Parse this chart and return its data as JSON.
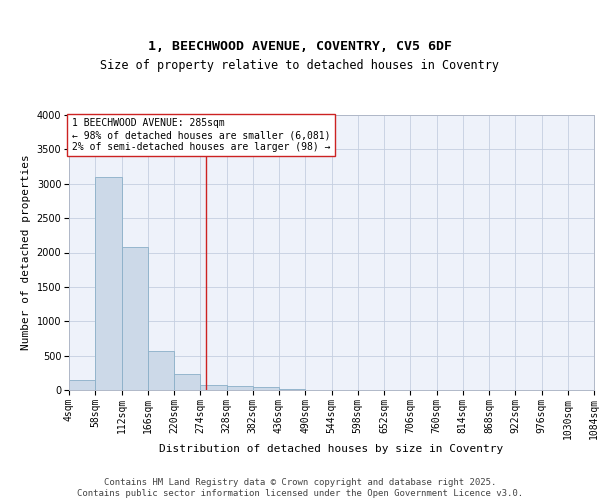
{
  "title_line1": "1, BEECHWOOD AVENUE, COVENTRY, CV5 6DF",
  "title_line2": "Size of property relative to detached houses in Coventry",
  "xlabel": "Distribution of detached houses by size in Coventry",
  "ylabel": "Number of detached properties",
  "bar_color": "#ccd9e8",
  "bar_edge_color": "#8aafc8",
  "background_color": "#eef2fa",
  "grid_color": "#c5cfe0",
  "vline_value": 285,
  "vline_color": "#cc2222",
  "annotation_text": "1 BEECHWOOD AVENUE: 285sqm\n← 98% of detached houses are smaller (6,081)\n2% of semi-detached houses are larger (98) →",
  "annotation_box_color": "#ffffff",
  "annotation_edge_color": "#cc2222",
  "bin_edges": [
    4,
    58,
    112,
    166,
    220,
    274,
    328,
    382,
    436,
    490,
    544,
    598,
    652,
    706,
    760,
    814,
    868,
    922,
    976,
    1030,
    1084
  ],
  "bin_labels": [
    "4sqm",
    "58sqm",
    "112sqm",
    "166sqm",
    "220sqm",
    "274sqm",
    "328sqm",
    "382sqm",
    "436sqm",
    "490sqm",
    "544sqm",
    "598sqm",
    "652sqm",
    "706sqm",
    "760sqm",
    "814sqm",
    "868sqm",
    "922sqm",
    "976sqm",
    "1030sqm",
    "1084sqm"
  ],
  "bar_heights": [
    150,
    3100,
    2080,
    570,
    240,
    80,
    55,
    40,
    10,
    0,
    0,
    0,
    0,
    0,
    0,
    0,
    0,
    0,
    0,
    0
  ],
  "ylim": [
    0,
    4000
  ],
  "yticks": [
    0,
    500,
    1000,
    1500,
    2000,
    2500,
    3000,
    3500,
    4000
  ],
  "footer_text": "Contains HM Land Registry data © Crown copyright and database right 2025.\nContains public sector information licensed under the Open Government Licence v3.0.",
  "title_fontsize": 9.5,
  "subtitle_fontsize": 8.5,
  "axis_label_fontsize": 8,
  "tick_fontsize": 7,
  "annotation_fontsize": 7,
  "footer_fontsize": 6.5
}
